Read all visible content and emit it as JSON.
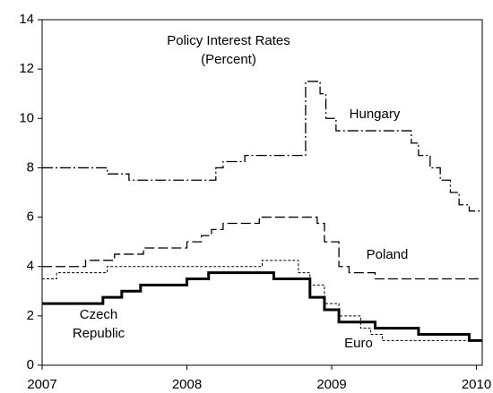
{
  "chart_data": {
    "type": "line",
    "step": "post",
    "title": "Policy Interest Rates",
    "subtitle": "(Percent)",
    "xlim": [
      2007,
      2010.04
    ],
    "xticks": [
      2007,
      2008,
      2009,
      2010
    ],
    "ylim": [
      0,
      14
    ],
    "yticks": [
      0,
      2,
      4,
      6,
      8,
      10,
      12,
      14
    ],
    "grid": false,
    "series": [
      {
        "name": "Hungary",
        "color": "#000000",
        "linestyle": "dashdot",
        "linewidth": 1.3,
        "x": [
          2007,
          2007.45,
          2007.6,
          2008.2,
          2008.25,
          2008.4,
          2008.82,
          2008.92,
          2008.96,
          2009.03,
          2009.55,
          2009.6,
          2009.68,
          2009.75,
          2009.82,
          2009.88,
          2009.95,
          2010.04
        ],
        "values": [
          8,
          7.75,
          7.5,
          8.0,
          8.25,
          8.5,
          11.5,
          11.0,
          10.0,
          9.5,
          9.0,
          8.5,
          8.0,
          7.5,
          7.0,
          6.5,
          6.25,
          6.25
        ]
      },
      {
        "name": "Poland",
        "color": "#000000",
        "linestyle": "dashed",
        "linewidth": 1.3,
        "x": [
          2007,
          2007.3,
          2007.5,
          2007.7,
          2008.0,
          2008.1,
          2008.17,
          2008.25,
          2008.5,
          2008.9,
          2008.95,
          2009.05,
          2009.12,
          2009.3,
          2010.04
        ],
        "values": [
          4.0,
          4.25,
          4.5,
          4.75,
          5.0,
          5.25,
          5.5,
          5.75,
          6.0,
          5.75,
          5.0,
          4.0,
          3.75,
          3.5,
          3.5
        ]
      },
      {
        "name": "Euro",
        "color": "#000000",
        "linestyle": "dotted",
        "linewidth": 1,
        "x": [
          2007,
          2007.1,
          2007.45,
          2008.52,
          2008.77,
          2008.85,
          2008.95,
          2009.05,
          2009.2,
          2009.27,
          2009.35,
          2010.04
        ],
        "values": [
          3.5,
          3.75,
          4.0,
          4.25,
          3.75,
          3.25,
          2.5,
          2.0,
          1.5,
          1.25,
          1.0,
          1.0
        ]
      },
      {
        "name": "Czech Republic",
        "color": "#000000",
        "linestyle": "solid",
        "linewidth": 3,
        "x": [
          2007,
          2007.42,
          2007.55,
          2007.68,
          2008.0,
          2008.15,
          2008.6,
          2008.85,
          2008.95,
          2009.05,
          2009.3,
          2009.6,
          2009.95,
          2010.04
        ],
        "values": [
          2.5,
          2.75,
          3.0,
          3.25,
          3.5,
          3.75,
          3.5,
          2.75,
          2.25,
          1.75,
          1.5,
          1.25,
          1.0,
          1.0
        ]
      }
    ]
  }
}
